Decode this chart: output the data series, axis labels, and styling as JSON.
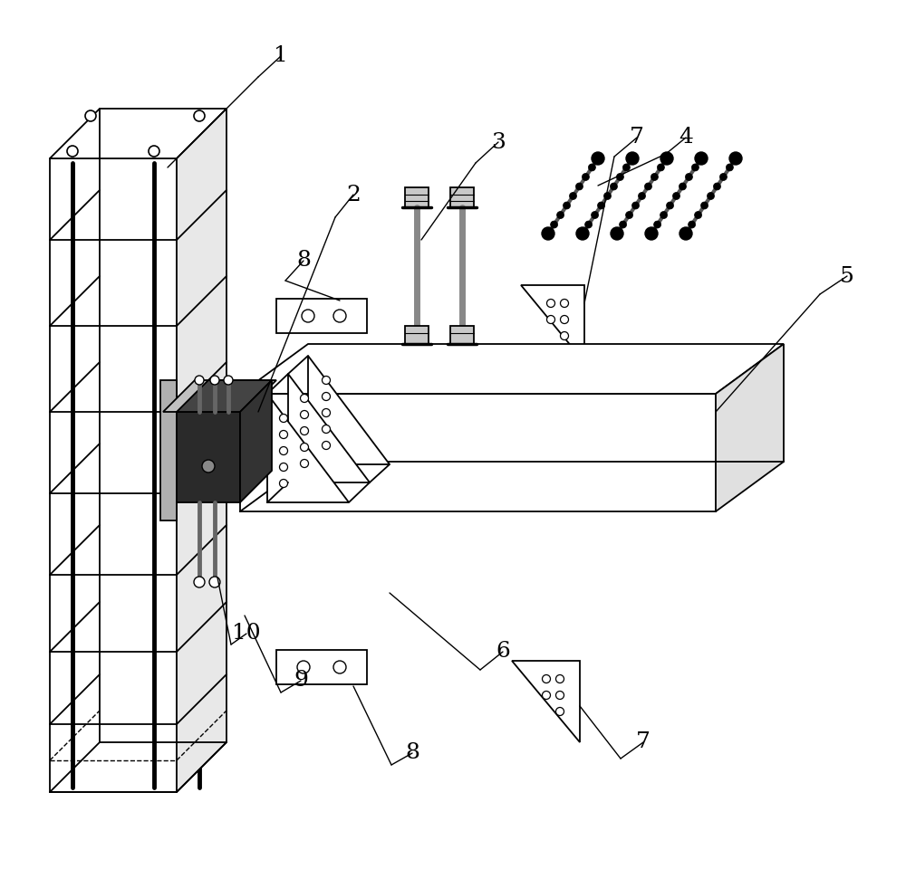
{
  "background_color": "#ffffff",
  "line_color": "#000000",
  "dark_fill": "#2a2a2a",
  "dark_gray": "#555555",
  "med_gray": "#888888",
  "light_gray": "#cccccc",
  "plate_gray": "#b8b8b8"
}
